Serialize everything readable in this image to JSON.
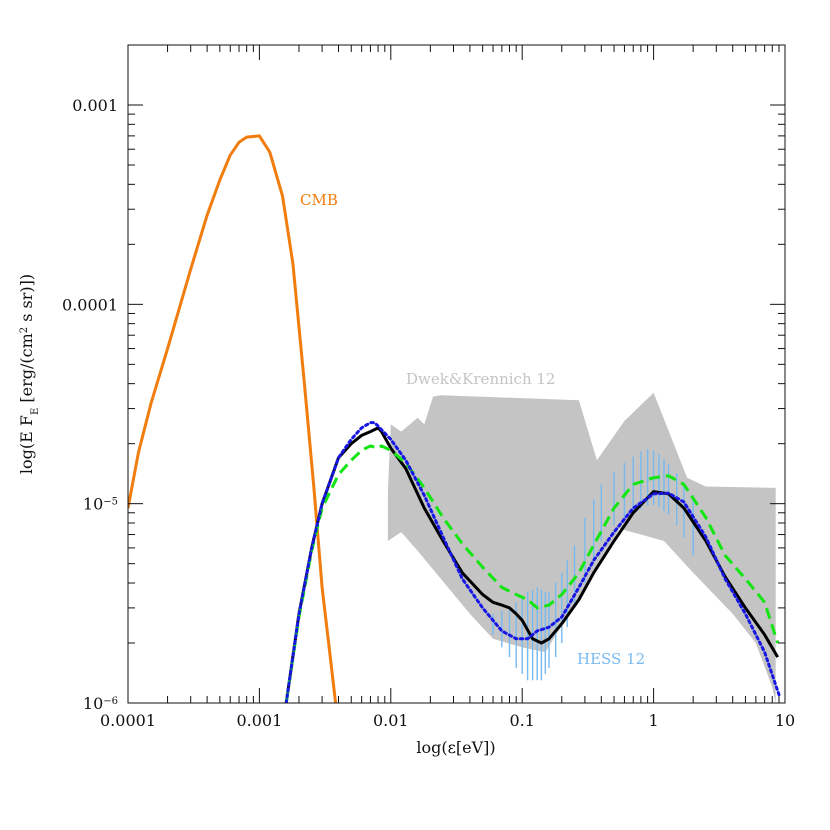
{
  "chart_data": {
    "type": "line",
    "xlabel": "log(ε[eV])",
    "ylabel": "log(E F",
    "ylabel_sub": "E",
    "ylabel_rest": " [erg/(cm",
    "ylabel_sup": "2",
    "ylabel_tail": " s sr)])",
    "x_scale": "log",
    "y_scale": "log",
    "xlim": [
      0.0001,
      10
    ],
    "ylim": [
      1e-06,
      0.002
    ],
    "grid": false,
    "x_ticks": [
      {
        "value": 0.0001,
        "label": "0.0001"
      },
      {
        "value": 0.001,
        "label": "0.001"
      },
      {
        "value": 0.01,
        "label": "0.01"
      },
      {
        "value": 0.1,
        "label": "0.1"
      },
      {
        "value": 1,
        "label": "1"
      },
      {
        "value": 10,
        "label": "10"
      }
    ],
    "y_ticks": [
      {
        "value": 1e-06,
        "base": "10",
        "exp": "−6"
      },
      {
        "value": 1e-05,
        "base": "10",
        "exp": "−5"
      },
      {
        "value": 0.0001,
        "label": "0.0001"
      },
      {
        "value": 0.001,
        "label": "0.001"
      }
    ],
    "annotations": {
      "cmb": "CMB",
      "dwek": "Dwek&Krennich 12",
      "hess": "HESS 12"
    },
    "band": {
      "x_upper": [
        0.0095,
        0.01,
        0.012,
        0.016,
        0.018,
        0.021,
        0.024,
        0.27,
        0.37,
        0.6,
        1,
        1.8,
        2.5,
        8.5
      ],
      "y_upper": [
        1.15e-05,
        2.5e-05,
        2.3e-05,
        2.7e-05,
        2.5e-05,
        3.45e-05,
        3.5e-05,
        3.3e-05,
        1.65e-05,
        2.6e-05,
        3.6e-05,
        1.35e-05,
        1.22e-05,
        1.2e-05
      ],
      "x_lower": [
        8.5,
        8.0,
        6.0,
        4.0,
        2.0,
        1.2,
        0.55,
        0.32,
        0.22,
        0.15,
        0.1,
        0.06,
        0.04,
        0.016,
        0.012,
        0.0095
      ],
      "y_lower": [
        1e-06,
        1.2e-06,
        2e-06,
        2.8e-06,
        4.5e-06,
        6.5e-06,
        7.5e-06,
        4e-06,
        2.7e-06,
        1.8e-06,
        1.9e-06,
        2.1e-06,
        2.8e-06,
        5.8e-06,
        7.2e-06,
        6.5e-06
      ],
      "color": "#c4c4c4"
    },
    "hess_band": {
      "x": [
        0.06,
        0.07,
        0.08,
        0.09,
        0.1,
        0.11,
        0.12,
        0.13,
        0.14,
        0.15,
        0.16,
        0.18,
        0.2,
        0.22,
        0.25,
        0.3,
        0.35,
        0.4,
        0.5,
        0.6,
        0.7,
        0.8,
        0.9,
        1.0,
        1.1,
        1.2,
        1.3,
        1.5,
        1.7,
        2.0
      ],
      "lo": [
        2.2e-06,
        1.9e-06,
        1.7e-06,
        1.5e-06,
        1.4e-06,
        1.3e-06,
        1.3e-06,
        1.3e-06,
        1.3e-06,
        1.4e-06,
        1.5e-06,
        1.7e-06,
        2e-06,
        2.4e-06,
        3e-06,
        4e-06,
        5.3e-06,
        6.5e-06,
        7.8e-06,
        8.2e-06,
        8.8e-06,
        9.4e-06,
        9.8e-06,
        9.8e-06,
        9.6e-06,
        9.2e-06,
        8.8e-06,
        7.8e-06,
        6.8e-06,
        5.5e-06
      ],
      "hi": [
        2.8e-06,
        2.9e-06,
        3e-06,
        3.2e-06,
        3.4e-06,
        3.6e-06,
        3.7e-06,
        3.8e-06,
        3.7e-06,
        3.6e-06,
        3.6e-06,
        4e-06,
        4.5e-06,
        5.2e-06,
        6.2e-06,
        8.5e-06,
        1.05e-05,
        1.25e-05,
        1.45e-05,
        1.6e-05,
        1.72e-05,
        1.82e-05,
        1.88e-05,
        1.85e-05,
        1.78e-05,
        1.68e-05,
        1.58e-05,
        1.42e-05,
        1.28e-05,
        1.1e-05
      ],
      "color": "#78baf0"
    },
    "series": [
      {
        "color": "#f07d0e",
        "style": "solid",
        "x": [
          0.0001,
          0.00012,
          0.00015,
          0.0002,
          0.0003,
          0.0004,
          0.0005,
          0.0006,
          0.0007,
          0.0008,
          0.001,
          0.0012,
          0.0015,
          0.0018,
          0.0022,
          0.0026,
          0.003,
          0.0035,
          0.0038
        ],
        "y": [
          9.5e-06,
          1.8e-05,
          3.2e-05,
          6e-05,
          0.00015,
          0.00028,
          0.00042,
          0.00056,
          0.00065,
          0.00069,
          0.0007,
          0.00058,
          0.00035,
          0.00016,
          4e-05,
          1.2e-05,
          3.8e-06,
          1.6e-06,
          1e-06
        ]
      },
      {
        "color": "#000000",
        "style": "solid",
        "x": [
          0.0016,
          0.002,
          0.0025,
          0.003,
          0.004,
          0.005,
          0.006,
          0.007,
          0.008,
          0.0085,
          0.01,
          0.013,
          0.018,
          0.025,
          0.035,
          0.05,
          0.06,
          0.07,
          0.08,
          0.09,
          0.1,
          0.12,
          0.14,
          0.16,
          0.2,
          0.27,
          0.35,
          0.5,
          0.7,
          1.0,
          1.3,
          1.7,
          2.5,
          3.5,
          5,
          7,
          8.8
        ],
        "y": [
          1e-06,
          2.8e-06,
          6e-06,
          1e-05,
          1.7e-05,
          2e-05,
          2.2e-05,
          2.3e-05,
          2.4e-05,
          2.3e-05,
          1.9e-05,
          1.5e-05,
          9.5e-06,
          6.5e-06,
          4.5e-06,
          3.5e-06,
          3.2e-06,
          3.1e-06,
          3e-06,
          2.8e-06,
          2.6e-06,
          2.1e-06,
          2e-06,
          2.1e-06,
          2.5e-06,
          3.3e-06,
          4.5e-06,
          6.5e-06,
          9e-06,
          1.15e-05,
          1.12e-05,
          9.5e-06,
          6.5e-06,
          4.3e-06,
          3e-06,
          2.2e-06,
          1.7e-06
        ]
      },
      {
        "color": "#12e512",
        "style": "dashed",
        "x": [
          0.0016,
          0.002,
          0.0025,
          0.003,
          0.004,
          0.005,
          0.006,
          0.007,
          0.008,
          0.0085,
          0.01,
          0.013,
          0.018,
          0.025,
          0.035,
          0.05,
          0.07,
          0.09,
          0.11,
          0.13,
          0.16,
          0.2,
          0.27,
          0.35,
          0.5,
          0.7,
          1.0,
          1.3,
          1.7,
          2.5,
          3.5,
          5,
          7,
          8.8
        ],
        "y": [
          1e-06,
          2.7e-06,
          5.8e-06,
          9.5e-06,
          1.4e-05,
          1.65e-05,
          1.85e-05,
          1.95e-05,
          1.9e-05,
          1.95e-05,
          1.85e-05,
          1.6e-05,
          1.2e-05,
          8.5e-06,
          6.3e-06,
          4.8e-06,
          3.8e-06,
          3.5e-06,
          3.3e-06,
          3e-06,
          3.1e-06,
          3.5e-06,
          4.5e-06,
          6.2e-06,
          9.5e-06,
          1.25e-05,
          1.35e-05,
          1.38e-05,
          1.25e-05,
          8.5e-06,
          5.5e-06,
          4.2e-06,
          3.2e-06,
          2e-06
        ]
      },
      {
        "color": "#1717e5",
        "style": "dotted",
        "x": [
          0.0016,
          0.002,
          0.0025,
          0.003,
          0.004,
          0.005,
          0.006,
          0.007,
          0.0075,
          0.008,
          0.01,
          0.013,
          0.018,
          0.025,
          0.035,
          0.05,
          0.07,
          0.09,
          0.11,
          0.13,
          0.16,
          0.2,
          0.27,
          0.35,
          0.5,
          0.7,
          1.0,
          1.3,
          1.7,
          2.5,
          3.5,
          5,
          7,
          9
        ],
        "y": [
          1e-06,
          2.8e-06,
          6e-06,
          1e-05,
          1.7e-05,
          2.1e-05,
          2.4e-05,
          2.55e-05,
          2.55e-05,
          2.45e-05,
          2.1e-05,
          1.65e-05,
          1.1e-05,
          6.8e-06,
          4.2e-06,
          3e-06,
          2.3e-06,
          2.1e-06,
          2.1e-06,
          2.3e-06,
          2.4e-06,
          2.7e-06,
          3.8e-06,
          5.2e-06,
          7.2e-06,
          9.5e-06,
          1.12e-05,
          1.13e-05,
          1.02e-05,
          6.8e-06,
          4.2e-06,
          2.8e-06,
          1.8e-06,
          1.1e-06
        ]
      }
    ]
  }
}
